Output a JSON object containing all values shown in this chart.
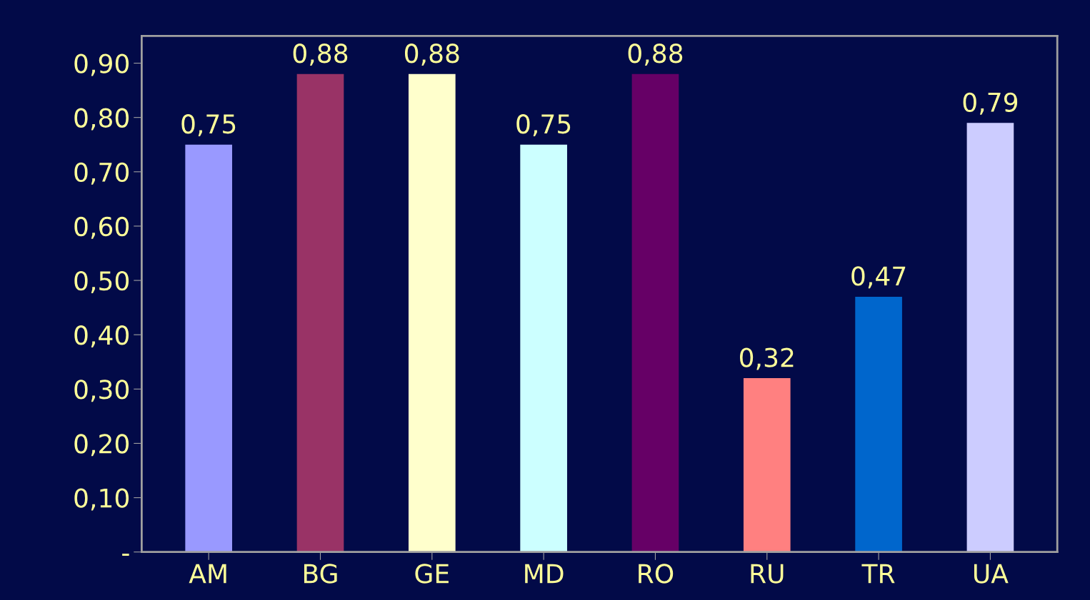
{
  "chart_data": {
    "type": "bar",
    "categories": [
      "AM",
      "BG",
      "GE",
      "MD",
      "RO",
      "RU",
      "TR",
      "UA"
    ],
    "values": [
      0.75,
      0.88,
      0.88,
      0.75,
      0.88,
      0.32,
      0.47,
      0.79
    ],
    "colors": [
      "#9999ff",
      "#993366",
      "#ffffcc",
      "#ccffff",
      "#660066",
      "#ff8080",
      "#0066cc",
      "#ccccff"
    ],
    "value_labels": [
      "0,75",
      "0,88",
      "0,88",
      "0,75",
      "0,88",
      "0,32",
      "0,47",
      "0,79"
    ],
    "ylim": [
      0,
      0.95
    ],
    "yticks": [
      {
        "value": 0,
        "label": "-"
      },
      {
        "value": 0.1,
        "label": "0,10"
      },
      {
        "value": 0.2,
        "label": "0,20"
      },
      {
        "value": 0.3,
        "label": "0,30"
      },
      {
        "value": 0.4,
        "label": "0,40"
      },
      {
        "value": 0.5,
        "label": "0,50"
      },
      {
        "value": 0.6,
        "label": "0,60"
      },
      {
        "value": 0.7,
        "label": "0,70"
      },
      {
        "value": 0.8,
        "label": "0,80"
      },
      {
        "value": 0.9,
        "label": "0,90"
      }
    ],
    "grid": false
  }
}
